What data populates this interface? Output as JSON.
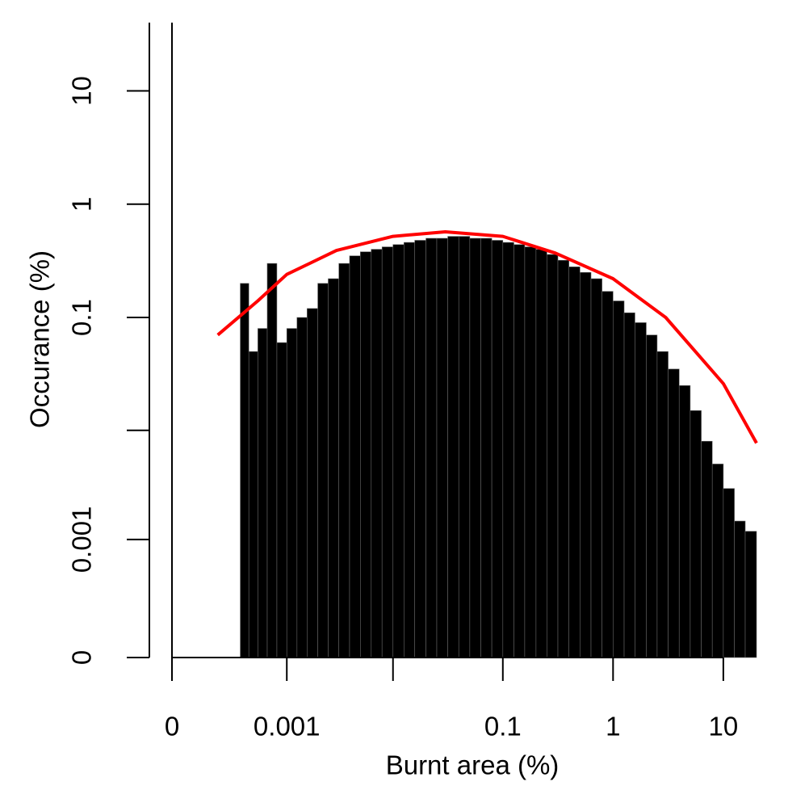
{
  "chart_data": {
    "type": "histogram",
    "xlabel": "Burnt area (%)",
    "ylabel": "Occurance (%)",
    "xscale": "log",
    "yscale": "log",
    "log_offset": 0.0001,
    "xlim": [
      0,
      20
    ],
    "ylim": [
      0,
      40
    ],
    "xticks": [
      0,
      0.001,
      {
        "value": 0.01,
        "label": null
      },
      0.1,
      1,
      10
    ],
    "yticks": [
      0,
      0.001,
      {
        "value": 0.01,
        "label": null
      },
      0.1,
      1,
      10
    ],
    "color": "#000000",
    "zero_value": 50,
    "bins": [
      0.000316,
      0.000398,
      0.000501,
      0.000631,
      0.000794,
      0.001,
      0.00126,
      0.00158,
      0.002,
      0.00251,
      0.00316,
      0.00398,
      0.00501,
      0.00631,
      0.00794,
      0.01,
      0.0126,
      0.0158,
      0.02,
      0.0251,
      0.0316,
      0.0398,
      0.0501,
      0.0631,
      0.0794,
      0.1,
      0.126,
      0.158,
      0.2,
      0.251,
      0.316,
      0.398,
      0.501,
      0.631,
      0.794,
      1,
      1.26,
      1.58,
      2,
      2.51,
      3.16,
      3.98,
      5.01,
      6.31,
      7.94,
      10,
      12.6,
      15.8,
      20
    ],
    "values": [
      0.2,
      0.05,
      0.08,
      0.3,
      0.06,
      0.08,
      0.1,
      0.12,
      0.2,
      0.22,
      0.3,
      0.35,
      0.38,
      0.4,
      0.42,
      0.44,
      0.46,
      0.48,
      0.5,
      0.5,
      0.52,
      0.52,
      0.5,
      0.5,
      0.48,
      0.46,
      0.44,
      0.42,
      0.4,
      0.36,
      0.32,
      0.28,
      0.25,
      0.22,
      0.17,
      0.14,
      0.11,
      0.09,
      0.07,
      0.05,
      0.035,
      0.025,
      0.015,
      0.008,
      0.005,
      0.003,
      0.0015,
      0.0012
    ],
    "fit": {
      "color": "#ff0000",
      "x": [
        0.00016,
        0.0005,
        0.001,
        0.003,
        0.01,
        0.03,
        0.1,
        0.3,
        1,
        3,
        10,
        20
      ],
      "values": [
        0.07,
        0.14,
        0.24,
        0.39,
        0.52,
        0.57,
        0.52,
        0.37,
        0.22,
        0.1,
        0.026,
        0.0077
      ]
    }
  }
}
